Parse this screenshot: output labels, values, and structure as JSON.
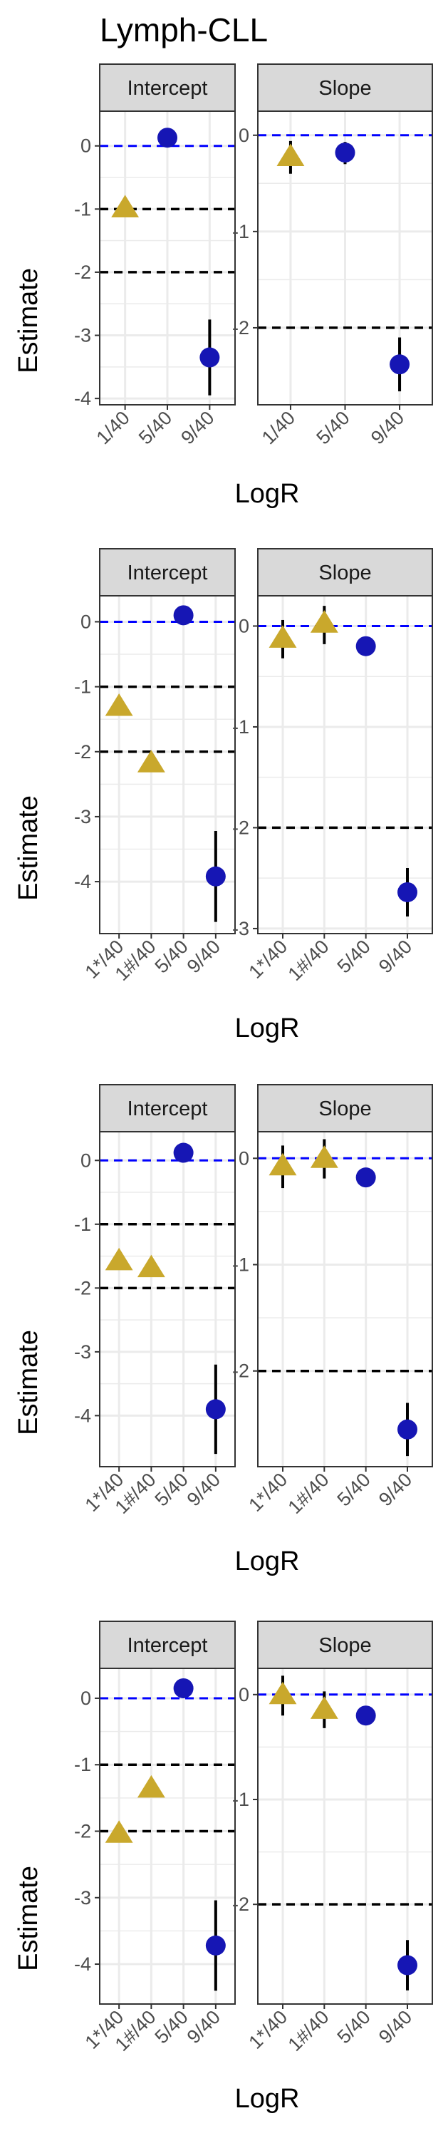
{
  "title": "Lymph-CLL",
  "colors": {
    "triangle": "#C9A82C",
    "circle": "#1616B4",
    "zero_line": "#0000FF",
    "ref_line": "#000000",
    "strip_bg": "#D9D9D9",
    "grid": "#EBEBEB"
  },
  "chart_data": [
    {
      "type": "scatter",
      "facet": "Intercept",
      "xlabel": "LogR",
      "ylabel": "Estimate",
      "categories": [
        "1/40",
        "5/40",
        "9/40"
      ],
      "ylim": [
        -4.1,
        0.55
      ],
      "yticks": [
        0,
        -1,
        -2,
        -3,
        -4
      ],
      "ref_lines": [
        -1,
        -2
      ],
      "points": [
        {
          "x": "1/40",
          "y": -0.98,
          "lo": -1.02,
          "hi": -0.94,
          "shape": "triangle"
        },
        {
          "x": "5/40",
          "y": 0.13,
          "lo": 0.07,
          "hi": 0.19,
          "shape": "circle"
        },
        {
          "x": "9/40",
          "y": -3.35,
          "lo": -3.95,
          "hi": -2.75,
          "shape": "circle"
        }
      ]
    },
    {
      "type": "scatter",
      "facet": "Slope",
      "xlabel": "LogR",
      "ylabel": "Estimate",
      "categories": [
        "1/40",
        "5/40",
        "9/40"
      ],
      "ylim": [
        -2.8,
        0.25
      ],
      "yticks": [
        0,
        -1,
        -2
      ],
      "ref_lines": [
        -2
      ],
      "points": [
        {
          "x": "1/40",
          "y": -0.22,
          "lo": -0.4,
          "hi": -0.06,
          "shape": "triangle"
        },
        {
          "x": "5/40",
          "y": -0.18,
          "lo": -0.3,
          "hi": -0.07,
          "shape": "circle"
        },
        {
          "x": "9/40",
          "y": -2.38,
          "lo": -2.66,
          "hi": -2.1,
          "shape": "circle"
        }
      ]
    },
    {
      "type": "scatter",
      "facet": "Intercept",
      "xlabel": "LogR",
      "ylabel": "Estimate",
      "categories": [
        "1*/40",
        "1#/40",
        "5/40",
        "9/40"
      ],
      "ylim": [
        -4.8,
        0.4
      ],
      "yticks": [
        0,
        -1,
        -2,
        -3,
        -4
      ],
      "ref_lines": [
        -1,
        -2
      ],
      "points": [
        {
          "x": "1*/40",
          "y": -1.3,
          "lo": -1.36,
          "hi": -1.24,
          "shape": "triangle"
        },
        {
          "x": "1#/40",
          "y": -2.17,
          "lo": -2.23,
          "hi": -2.11,
          "shape": "triangle"
        },
        {
          "x": "5/40",
          "y": 0.1,
          "lo": 0.04,
          "hi": 0.16,
          "shape": "circle"
        },
        {
          "x": "9/40",
          "y": -3.92,
          "lo": -4.62,
          "hi": -3.22,
          "shape": "circle"
        }
      ]
    },
    {
      "type": "scatter",
      "facet": "Slope",
      "xlabel": "LogR",
      "ylabel": "Estimate",
      "categories": [
        "1*/40",
        "1#/40",
        "5/40",
        "9/40"
      ],
      "ylim": [
        -3.05,
        0.3
      ],
      "yticks": [
        0,
        -1,
        -2,
        -3
      ],
      "ref_lines": [
        -2
      ],
      "points": [
        {
          "x": "1*/40",
          "y": -0.12,
          "lo": -0.32,
          "hi": 0.06,
          "shape": "triangle"
        },
        {
          "x": "1#/40",
          "y": 0.03,
          "lo": -0.18,
          "hi": 0.2,
          "shape": "triangle"
        },
        {
          "x": "5/40",
          "y": -0.2,
          "lo": -0.26,
          "hi": -0.14,
          "shape": "circle"
        },
        {
          "x": "9/40",
          "y": -2.64,
          "lo": -2.88,
          "hi": -2.4,
          "shape": "circle"
        }
      ]
    },
    {
      "type": "scatter",
      "facet": "Intercept",
      "xlabel": "LogR",
      "ylabel": "Estimate",
      "categories": [
        "1*/40",
        "1#/40",
        "5/40",
        "9/40"
      ],
      "ylim": [
        -4.8,
        0.45
      ],
      "yticks": [
        0,
        -1,
        -2,
        -3,
        -4
      ],
      "ref_lines": [
        -1,
        -2
      ],
      "points": [
        {
          "x": "1*/40",
          "y": -1.57,
          "lo": -1.63,
          "hi": -1.51,
          "shape": "triangle"
        },
        {
          "x": "1#/40",
          "y": -1.68,
          "lo": -1.74,
          "hi": -1.62,
          "shape": "triangle"
        },
        {
          "x": "5/40",
          "y": 0.12,
          "lo": 0.06,
          "hi": 0.18,
          "shape": "circle"
        },
        {
          "x": "9/40",
          "y": -3.9,
          "lo": -4.6,
          "hi": -3.2,
          "shape": "circle"
        }
      ]
    },
    {
      "type": "scatter",
      "facet": "Slope",
      "xlabel": "LogR",
      "ylabel": "Estimate",
      "categories": [
        "1*/40",
        "1#/40",
        "5/40",
        "9/40"
      ],
      "ylim": [
        -2.9,
        0.25
      ],
      "yticks": [
        0,
        -1,
        -2
      ],
      "ref_lines": [
        -2
      ],
      "points": [
        {
          "x": "1*/40",
          "y": -0.07,
          "lo": -0.28,
          "hi": 0.12,
          "shape": "triangle"
        },
        {
          "x": "1#/40",
          "y": 0.0,
          "lo": -0.19,
          "hi": 0.18,
          "shape": "triangle"
        },
        {
          "x": "5/40",
          "y": -0.18,
          "lo": -0.24,
          "hi": -0.12,
          "shape": "circle"
        },
        {
          "x": "9/40",
          "y": -2.55,
          "lo": -2.8,
          "hi": -2.3,
          "shape": "circle"
        }
      ]
    },
    {
      "type": "scatter",
      "facet": "Intercept",
      "xlabel": "LogR",
      "ylabel": "Estimate",
      "categories": [
        "1*/40",
        "1#/40",
        "5/40",
        "9/40"
      ],
      "ylim": [
        -4.6,
        0.45
      ],
      "yticks": [
        0,
        -1,
        -2,
        -3,
        -4
      ],
      "ref_lines": [
        -1,
        -2
      ],
      "points": [
        {
          "x": "1*/40",
          "y": -2.03,
          "lo": -2.09,
          "hi": -1.97,
          "shape": "triangle"
        },
        {
          "x": "1#/40",
          "y": -1.35,
          "lo": -1.41,
          "hi": -1.29,
          "shape": "triangle"
        },
        {
          "x": "5/40",
          "y": 0.15,
          "lo": 0.09,
          "hi": 0.21,
          "shape": "circle"
        },
        {
          "x": "9/40",
          "y": -3.72,
          "lo": -4.4,
          "hi": -3.04,
          "shape": "circle"
        }
      ]
    },
    {
      "type": "scatter",
      "facet": "Slope",
      "xlabel": "LogR",
      "ylabel": "Estimate",
      "categories": [
        "1*/40",
        "1#/40",
        "5/40",
        "9/40"
      ],
      "ylim": [
        -2.95,
        0.25
      ],
      "yticks": [
        0,
        -1,
        -2
      ],
      "ref_lines": [
        -2
      ],
      "points": [
        {
          "x": "1*/40",
          "y": 0.0,
          "lo": -0.2,
          "hi": 0.18,
          "shape": "triangle"
        },
        {
          "x": "1#/40",
          "y": -0.14,
          "lo": -0.32,
          "hi": 0.03,
          "shape": "triangle"
        },
        {
          "x": "5/40",
          "y": -0.2,
          "lo": -0.26,
          "hi": -0.14,
          "shape": "circle"
        },
        {
          "x": "9/40",
          "y": -2.58,
          "lo": -2.82,
          "hi": -2.34,
          "shape": "circle"
        }
      ]
    }
  ]
}
